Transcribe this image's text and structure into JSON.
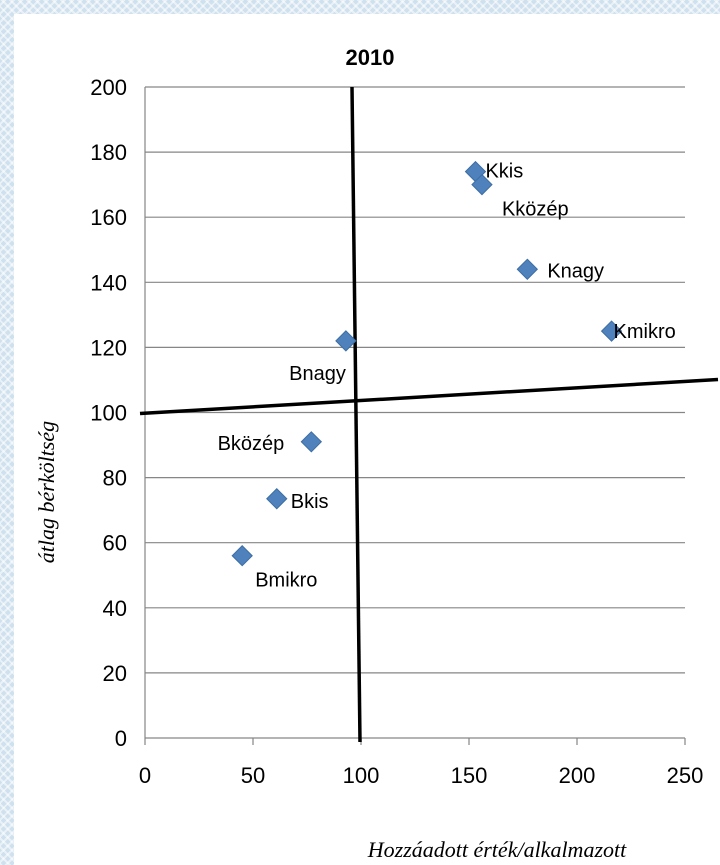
{
  "chart_data": {
    "type": "scatter",
    "title": "2010",
    "xlabel": "Hozzáadott érték/alkalmazott",
    "ylabel": "átlag bérköltség",
    "xlim": [
      0,
      250
    ],
    "ylim": [
      0,
      200
    ],
    "x_ticks": [
      "0",
      "50",
      "100",
      "150",
      "200",
      "250"
    ],
    "y_ticks": [
      "0",
      "20",
      "40",
      "60",
      "80",
      "100",
      "120",
      "140",
      "160",
      "180",
      "200"
    ],
    "grid": "horizontal",
    "marker_color": "#4f81bd",
    "quadrant_lines": {
      "x": 100,
      "y": 100
    },
    "points": [
      {
        "label": "Kkis",
        "x": 153,
        "y": 174
      },
      {
        "label": "Kközép",
        "x": 156,
        "y": 170
      },
      {
        "label": "Knagy",
        "x": 177,
        "y": 144
      },
      {
        "label": "Kmikro",
        "x": 216,
        "y": 125
      },
      {
        "label": "Bnagy",
        "x": 93,
        "y": 122
      },
      {
        "label": "Bközép",
        "x": 77,
        "y": 91
      },
      {
        "label": "Bkis",
        "x": 61,
        "y": 73.5
      },
      {
        "label": "Bmikro",
        "x": 45,
        "y": 56
      }
    ]
  }
}
